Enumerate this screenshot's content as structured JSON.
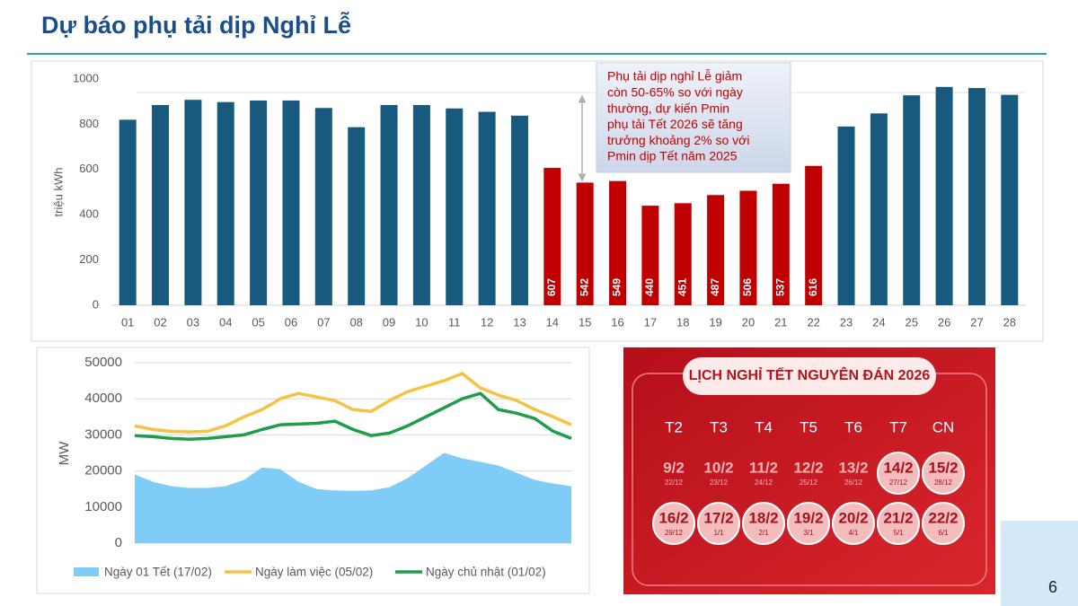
{
  "title": "Dự báo phụ tải dịp Nghỉ Lễ",
  "page_number": "6",
  "chart_data": [
    {
      "type": "bar",
      "ylabel": "triệu kWh",
      "categories": [
        "01",
        "02",
        "03",
        "04",
        "05",
        "06",
        "07",
        "08",
        "09",
        "10",
        "11",
        "12",
        "13",
        "14",
        "15",
        "16",
        "17",
        "18",
        "19",
        "20",
        "21",
        "22",
        "23",
        "24",
        "25",
        "26",
        "27",
        "28"
      ],
      "values": [
        820,
        885,
        908,
        898,
        905,
        905,
        872,
        787,
        885,
        885,
        870,
        855,
        838,
        607,
        542,
        549,
        440,
        451,
        487,
        506,
        537,
        616,
        790,
        848,
        928,
        965,
        960,
        930
      ],
      "colors": [
        "#175a7e",
        "#175a7e",
        "#175a7e",
        "#175a7e",
        "#175a7e",
        "#175a7e",
        "#175a7e",
        "#175a7e",
        "#175a7e",
        "#175a7e",
        "#175a7e",
        "#175a7e",
        "#175a7e",
        "#c00000",
        "#c00000",
        "#c00000",
        "#c00000",
        "#c00000",
        "#c00000",
        "#c00000",
        "#c00000",
        "#c00000",
        "#175a7e",
        "#175a7e",
        "#175a7e",
        "#175a7e",
        "#175a7e",
        "#175a7e"
      ],
      "labeled": [
        false,
        false,
        false,
        false,
        false,
        false,
        false,
        false,
        false,
        false,
        false,
        false,
        false,
        true,
        true,
        true,
        true,
        true,
        true,
        true,
        true,
        true,
        false,
        false,
        false,
        false,
        false,
        false
      ],
      "ylim": [
        0,
        1000
      ],
      "yticks": [
        0,
        200,
        400,
        600,
        800,
        1000
      ],
      "grid": false,
      "annotation": [
        "Phụ tải dịp nghỉ Lễ giảm",
        "còn 50-65% so với ngày",
        "thường, dự kiến Pmin",
        "phụ tải Tết 2026 sẽ tăng",
        "trưởng khoảng 2% so với",
        "Pmin dịp Tết năm 2025"
      ]
    },
    {
      "type": "line",
      "ylabel": "MW",
      "ylim": [
        0,
        50000
      ],
      "yticks": [
        0,
        10000,
        20000,
        30000,
        40000,
        50000
      ],
      "grid": true,
      "series": [
        {
          "name": "Ngày 01 Tết (17/02)",
          "color": "#7fcdf7",
          "area": true,
          "values": [
            19000,
            17000,
            15800,
            15300,
            15300,
            15800,
            17500,
            21000,
            20500,
            17000,
            15000,
            14600,
            14500,
            14600,
            15500,
            18000,
            21500,
            25000,
            23500,
            22500,
            21500,
            19500,
            17500,
            16500,
            15800
          ]
        },
        {
          "name": "Ngày làm việc (05/02)",
          "color": "#f5c242",
          "area": false,
          "values": [
            32500,
            31500,
            31000,
            30800,
            31000,
            32500,
            35000,
            37000,
            40000,
            41500,
            40500,
            39500,
            37000,
            36500,
            39500,
            42000,
            43500,
            45000,
            47000,
            43000,
            41000,
            39500,
            37000,
            35000,
            32800
          ]
        },
        {
          "name": "Ngày chủ nhật (01/02)",
          "color": "#1e9e4a",
          "area": false,
          "values": [
            29800,
            29500,
            29000,
            28800,
            29000,
            29500,
            30000,
            31500,
            32800,
            33000,
            33200,
            33800,
            31500,
            29800,
            30500,
            32500,
            35000,
            37500,
            40000,
            41500,
            37000,
            36000,
            34500,
            31000,
            29000
          ]
        }
      ]
    }
  ],
  "calendar": {
    "title": "LỊCH NGHỈ TẾT NGUYÊN ĐÁN 2026",
    "weekdays": [
      "T2",
      "T3",
      "T4",
      "T5",
      "T6",
      "T7",
      "CN"
    ],
    "weeks": [
      [
        {
          "date": "9/2",
          "lunar": "22/12",
          "holiday": false
        },
        {
          "date": "10/2",
          "lunar": "23/12",
          "holiday": false
        },
        {
          "date": "11/2",
          "lunar": "24/12",
          "holiday": false
        },
        {
          "date": "12/2",
          "lunar": "25/12",
          "holiday": false
        },
        {
          "date": "13/2",
          "lunar": "26/12",
          "holiday": false
        },
        {
          "date": "14/2",
          "lunar": "27/12",
          "holiday": true
        },
        {
          "date": "15/2",
          "lunar": "28/12",
          "holiday": true
        }
      ],
      [
        {
          "date": "16/2",
          "lunar": "29/12",
          "holiday": true
        },
        {
          "date": "17/2",
          "lunar": "1/1",
          "holiday": true
        },
        {
          "date": "18/2",
          "lunar": "2/1",
          "holiday": true
        },
        {
          "date": "19/2",
          "lunar": "3/1",
          "holiday": true
        },
        {
          "date": "20/2",
          "lunar": "4/1",
          "holiday": true
        },
        {
          "date": "21/2",
          "lunar": "5/1",
          "holiday": true
        },
        {
          "date": "22/2",
          "lunar": "6/1",
          "holiday": true
        }
      ]
    ]
  }
}
